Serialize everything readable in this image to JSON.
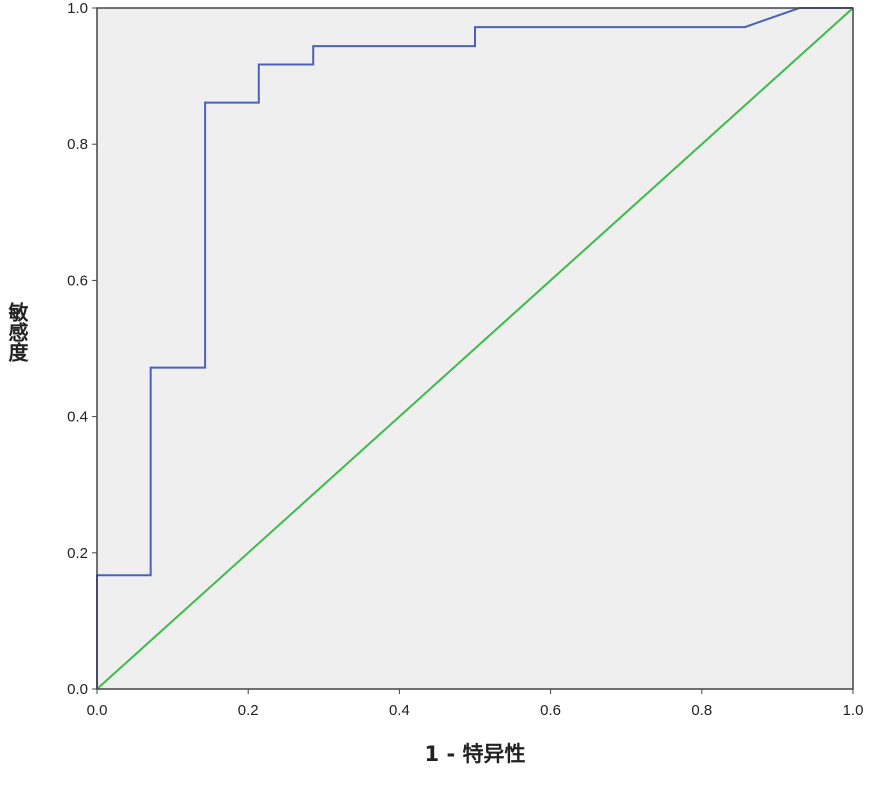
{
  "chart_data": {
    "type": "line",
    "title": "",
    "xlabel": "1 - 特异性",
    "ylabel": "敏感度",
    "xlim": [
      0,
      1
    ],
    "ylim": [
      0,
      1
    ],
    "grid": false,
    "background": "#efefef",
    "xticks": [
      "0.0",
      "0.2",
      "0.4",
      "0.6",
      "0.8",
      "1.0"
    ],
    "yticks": [
      "0.0",
      "0.2",
      "0.4",
      "0.6",
      "0.8",
      "1.0"
    ],
    "series": [
      {
        "color": "#4a62b8",
        "x": [
          0,
          0,
          0.071,
          0.071,
          0.143,
          0.143,
          0.214,
          0.214,
          0.286,
          0.286,
          0.5,
          0.5,
          0.857,
          0.929,
          1.0
        ],
        "y": [
          0,
          0.167,
          0.167,
          0.472,
          0.472,
          0.861,
          0.861,
          0.917,
          0.917,
          0.944,
          0.944,
          0.972,
          0.972,
          1.0,
          1.0
        ]
      },
      {
        "color": "#3dbb4a",
        "x": [
          0,
          1
        ],
        "y": [
          0,
          1
        ]
      }
    ]
  }
}
